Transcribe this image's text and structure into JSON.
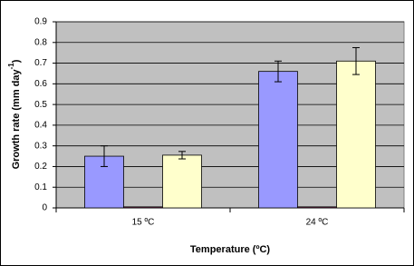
{
  "chart_data": {
    "type": "bar",
    "x_label": "Temperature (ºC)",
    "y_label": {
      "text": "Growth rate (mm day",
      "superscript": "-1",
      "suffix": ")"
    },
    "categories": [
      "15 ºC",
      "24 ºC"
    ],
    "series": [
      {
        "color": "#9999ff",
        "values": [
          0.25,
          0.66
        ],
        "errors": [
          0.05,
          0.05
        ]
      },
      {
        "color": "#993366",
        "values": [
          0.005,
          0.005
        ]
      },
      {
        "color": "#ffffcc",
        "values": [
          0.255,
          0.71
        ],
        "errors": [
          0.018,
          0.065
        ]
      }
    ],
    "ylim": [
      0,
      0.9
    ],
    "yticks": [
      0,
      0.1,
      0.2,
      0.3,
      0.4,
      0.5,
      0.6,
      0.7,
      0.8,
      0.9
    ],
    "grid": true,
    "plot_background": "#c0c0c0"
  }
}
